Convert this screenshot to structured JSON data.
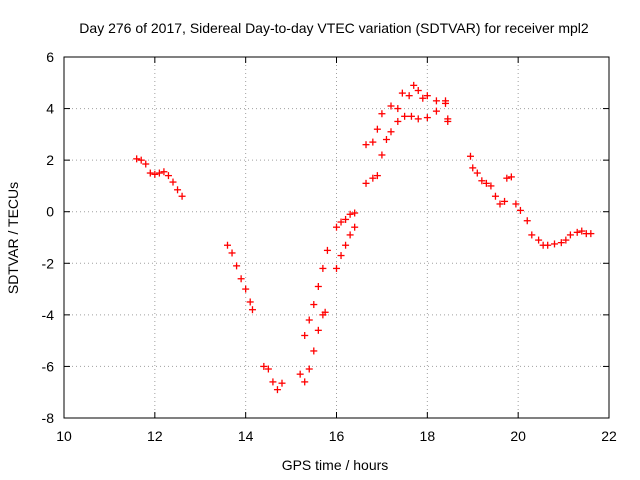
{
  "chart_data": {
    "type": "scatter",
    "title": "Day 276 of 2017, Sidereal Day-to-day VTEC variation (SDTVAR) for receiver mpl2",
    "xlabel": "GPS time / hours",
    "ylabel": "SDTVAR / TECUs",
    "xlim": [
      10,
      22
    ],
    "ylim": [
      -8,
      6
    ],
    "xticks": [
      10,
      12,
      14,
      16,
      18,
      20,
      22
    ],
    "yticks": [
      -8,
      -6,
      -4,
      -2,
      0,
      2,
      4,
      6
    ],
    "grid": true,
    "marker": "+",
    "marker_color": "#ff0000",
    "series": [
      {
        "points": [
          [
            11.6,
            2.05
          ],
          [
            11.7,
            2.0
          ],
          [
            11.8,
            1.85
          ],
          [
            11.9,
            1.5
          ],
          [
            12.0,
            1.45
          ],
          [
            12.1,
            1.5
          ],
          [
            12.2,
            1.55
          ],
          [
            12.3,
            1.4
          ],
          [
            12.4,
            1.15
          ],
          [
            12.5,
            0.85
          ],
          [
            12.6,
            0.6
          ],
          [
            13.6,
            -1.3
          ],
          [
            13.7,
            -1.6
          ],
          [
            13.8,
            -2.1
          ],
          [
            13.9,
            -2.6
          ],
          [
            14.0,
            -3.0
          ],
          [
            14.1,
            -3.5
          ],
          [
            14.15,
            -3.8
          ],
          [
            14.4,
            -6.0
          ],
          [
            14.5,
            -6.1
          ],
          [
            14.6,
            -6.6
          ],
          [
            14.7,
            -6.9
          ],
          [
            14.8,
            -6.65
          ],
          [
            15.2,
            -6.3
          ],
          [
            15.3,
            -6.6
          ],
          [
            15.4,
            -6.1
          ],
          [
            15.5,
            -5.4
          ],
          [
            15.6,
            -4.6
          ],
          [
            15.7,
            -4.0
          ],
          [
            15.75,
            -3.9
          ],
          [
            15.3,
            -4.8
          ],
          [
            15.4,
            -4.2
          ],
          [
            15.5,
            -3.6
          ],
          [
            15.6,
            -2.9
          ],
          [
            15.7,
            -2.2
          ],
          [
            15.8,
            -1.5
          ],
          [
            16.0,
            -2.2
          ],
          [
            16.1,
            -1.7
          ],
          [
            16.2,
            -1.3
          ],
          [
            16.3,
            -0.9
          ],
          [
            16.4,
            -0.6
          ],
          [
            16.0,
            -0.6
          ],
          [
            16.1,
            -0.4
          ],
          [
            16.2,
            -0.3
          ],
          [
            16.3,
            -0.1
          ],
          [
            16.4,
            -0.05
          ],
          [
            16.65,
            1.1
          ],
          [
            16.8,
            1.3
          ],
          [
            16.9,
            1.4
          ],
          [
            17.0,
            2.2
          ],
          [
            17.1,
            2.8
          ],
          [
            17.2,
            3.1
          ],
          [
            17.35,
            3.5
          ],
          [
            17.5,
            3.7
          ],
          [
            17.65,
            3.7
          ],
          [
            17.8,
            3.6
          ],
          [
            18.0,
            3.65
          ],
          [
            18.2,
            3.9
          ],
          [
            18.4,
            4.2
          ],
          [
            18.45,
            3.5
          ],
          [
            16.65,
            2.6
          ],
          [
            16.8,
            2.7
          ],
          [
            16.9,
            3.2
          ],
          [
            17.0,
            3.8
          ],
          [
            17.2,
            4.1
          ],
          [
            17.35,
            4.0
          ],
          [
            17.45,
            4.6
          ],
          [
            17.6,
            4.5
          ],
          [
            17.7,
            4.9
          ],
          [
            17.8,
            4.7
          ],
          [
            17.9,
            4.4
          ],
          [
            18.0,
            4.5
          ],
          [
            18.2,
            4.3
          ],
          [
            18.4,
            4.3
          ],
          [
            18.45,
            3.6
          ],
          [
            18.95,
            2.15
          ],
          [
            19.0,
            1.7
          ],
          [
            19.1,
            1.5
          ],
          [
            19.2,
            1.2
          ],
          [
            19.3,
            1.1
          ],
          [
            19.4,
            1.0
          ],
          [
            19.5,
            0.6
          ],
          [
            19.6,
            0.3
          ],
          [
            19.7,
            0.4
          ],
          [
            19.75,
            1.3
          ],
          [
            19.85,
            1.35
          ],
          [
            19.95,
            0.3
          ],
          [
            20.05,
            0.05
          ],
          [
            20.2,
            -0.35
          ],
          [
            20.3,
            -0.9
          ],
          [
            20.45,
            -1.1
          ],
          [
            20.55,
            -1.3
          ],
          [
            20.65,
            -1.3
          ],
          [
            20.8,
            -1.25
          ],
          [
            20.95,
            -1.2
          ],
          [
            21.05,
            -1.1
          ],
          [
            21.15,
            -0.9
          ],
          [
            21.3,
            -0.8
          ],
          [
            21.4,
            -0.75
          ],
          [
            21.5,
            -0.85
          ],
          [
            21.6,
            -0.85
          ]
        ]
      }
    ]
  }
}
